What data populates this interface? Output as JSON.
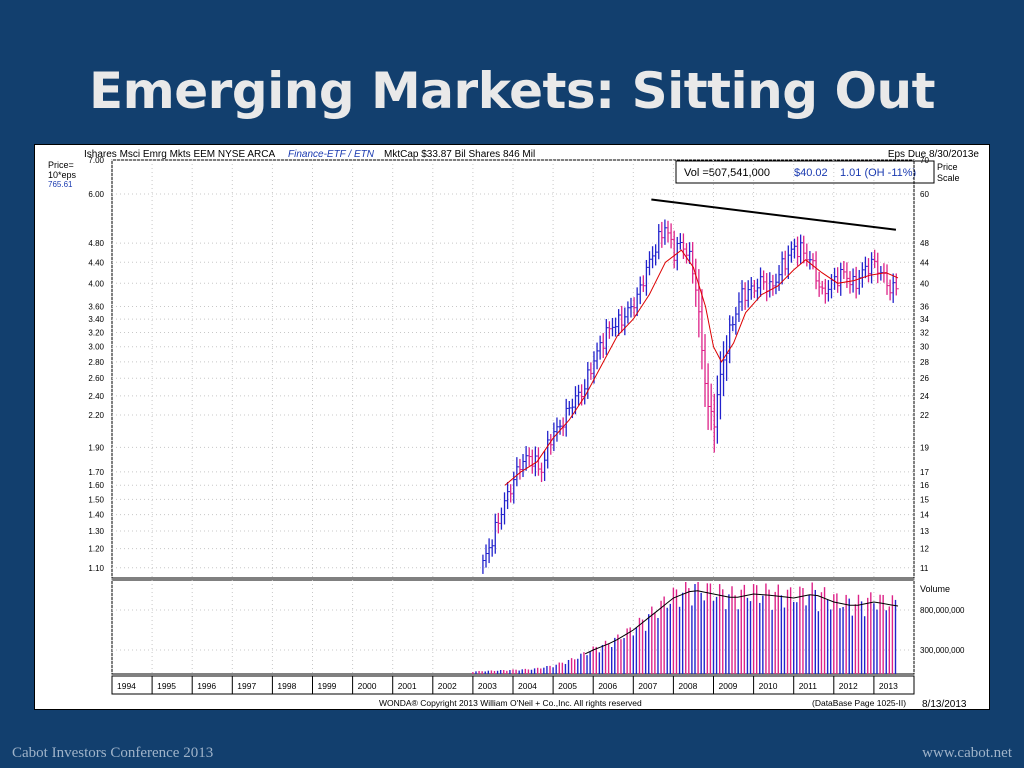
{
  "slide": {
    "title": "Emerging Markets: Sitting Out",
    "footer_left": "Cabot Investors Conference 2013",
    "footer_right": "www.cabot.net"
  },
  "header": {
    "left": "Ishares Msci Emrg Mkts  EEM  NYSE ARCA",
    "category": "Finance-ETF / ETN",
    "right": "MktCap $33.87 Bil   Shares 846 Mil",
    "eps_due": "Eps Due 8/30/2013e"
  },
  "price_box": {
    "vol": "Vol =507,541,000",
    "price": "$40.02",
    "change": "1.01 (OH -11%)"
  },
  "left_axis": {
    "label1": "Price=",
    "label2": "10*eps",
    "label3": "765.61"
  },
  "right_axis": {
    "label1": "Price",
    "label2": "Scale",
    "volume_label": "Volume"
  },
  "copyright": "WONDA® Copyright 2013 William O'Neil + Co.,Inc. All rights reserved",
  "database": "(DataBase Page 1025-II)",
  "date": "8/13/2013",
  "colors": {
    "up": "#2222cc",
    "down": "#dd2288",
    "ma": "#dd0000",
    "trend": "#000000"
  },
  "chart_data": {
    "type": "bar",
    "scale": "log",
    "ylim": [
      10.5,
      70
    ],
    "left_ticks": [
      {
        "v": 11,
        "label": "1.10"
      },
      {
        "v": 12,
        "label": "1.20"
      },
      {
        "v": 13,
        "label": "1.30"
      },
      {
        "v": 14,
        "label": "1.40"
      },
      {
        "v": 15,
        "label": "1.50"
      },
      {
        "v": 16,
        "label": "1.60"
      },
      {
        "v": 17,
        "label": "1.70"
      },
      {
        "v": 19,
        "label": "1.90"
      },
      {
        "v": 22,
        "label": "2.20"
      },
      {
        "v": 24,
        "label": "2.40"
      },
      {
        "v": 26,
        "label": "2.60"
      },
      {
        "v": 28,
        "label": "2.80"
      },
      {
        "v": 30,
        "label": "3.00"
      },
      {
        "v": 32,
        "label": "3.20"
      },
      {
        "v": 34,
        "label": "3.40"
      },
      {
        "v": 36,
        "label": "3.60"
      },
      {
        "v": 40,
        "label": "4.00"
      },
      {
        "v": 44,
        "label": "4.40"
      },
      {
        "v": 48,
        "label": "4.80"
      },
      {
        "v": 60,
        "label": "6.00"
      },
      {
        "v": 70,
        "label": "7.00"
      }
    ],
    "right_ticks": [
      {
        "v": 11,
        "label": "11"
      },
      {
        "v": 12,
        "label": "12"
      },
      {
        "v": 13,
        "label": "13"
      },
      {
        "v": 14,
        "label": "14"
      },
      {
        "v": 15,
        "label": "15"
      },
      {
        "v": 16,
        "label": "16"
      },
      {
        "v": 17,
        "label": "17"
      },
      {
        "v": 19,
        "label": "19"
      },
      {
        "v": 22,
        "label": "22"
      },
      {
        "v": 24,
        "label": "24"
      },
      {
        "v": 26,
        "label": "26"
      },
      {
        "v": 28,
        "label": "28"
      },
      {
        "v": 30,
        "label": "30"
      },
      {
        "v": 32,
        "label": "32"
      },
      {
        "v": 34,
        "label": "34"
      },
      {
        "v": 36,
        "label": "36"
      },
      {
        "v": 40,
        "label": "40"
      },
      {
        "v": 44,
        "label": "44"
      },
      {
        "v": 48,
        "label": "48"
      },
      {
        "v": 60,
        "label": "60"
      },
      {
        "v": 70,
        "label": "70"
      }
    ],
    "volume_ticks": [
      {
        "v": 800000000,
        "label": "800,000,000"
      },
      {
        "v": 300000000,
        "label": "300,000,000"
      }
    ],
    "years": [
      "1994",
      "1995",
      "1996",
      "1997",
      "1998",
      "1999",
      "2000",
      "2001",
      "2002",
      "2003",
      "2004",
      "2005",
      "2006",
      "2007",
      "2008",
      "2009",
      "2010",
      "2011",
      "2012",
      "2013"
    ],
    "year_start": 1994,
    "year_end": 2014,
    "price_series": {
      "name": "",
      "points": [
        [
          2003.25,
          11.2
        ],
        [
          2003.5,
          12.6
        ],
        [
          2003.75,
          14.5
        ],
        [
          2004.0,
          16.2
        ],
        [
          2004.2,
          17.8
        ],
        [
          2004.45,
          18.2
        ],
        [
          2004.7,
          17.0
        ],
        [
          2004.95,
          20.0
        ],
        [
          2005.2,
          21.0
        ],
        [
          2005.5,
          23.5
        ],
        [
          2005.75,
          24.5
        ],
        [
          2006.0,
          28.0
        ],
        [
          2006.25,
          31.0
        ],
        [
          2006.45,
          33.0
        ],
        [
          2006.65,
          33.5
        ],
        [
          2006.85,
          35.0
        ],
        [
          2007.1,
          37.5
        ],
        [
          2007.35,
          43.0
        ],
        [
          2007.55,
          47.0
        ],
        [
          2007.8,
          52.0
        ],
        [
          2008.0,
          46.0
        ],
        [
          2008.2,
          48.0
        ],
        [
          2008.4,
          45.0
        ],
        [
          2008.55,
          40.0
        ],
        [
          2008.7,
          30.0
        ],
        [
          2008.85,
          23.0
        ],
        [
          2009.0,
          21.0
        ],
        [
          2009.2,
          27.0
        ],
        [
          2009.45,
          33.0
        ],
        [
          2009.7,
          38.0
        ],
        [
          2010.0,
          39.0
        ],
        [
          2010.2,
          40.5
        ],
        [
          2010.45,
          39.0
        ],
        [
          2010.7,
          43.0
        ],
        [
          2011.0,
          47.0
        ],
        [
          2011.2,
          46.5
        ],
        [
          2011.45,
          44.0
        ],
        [
          2011.7,
          38.0
        ],
        [
          2012.0,
          40.5
        ],
        [
          2012.25,
          42.0
        ],
        [
          2012.5,
          39.5
        ],
        [
          2012.75,
          42.5
        ],
        [
          2013.0,
          44.0
        ],
        [
          2013.25,
          41.0
        ],
        [
          2013.45,
          38.5
        ],
        [
          2013.6,
          40.0
        ]
      ]
    },
    "moving_average": {
      "name": "",
      "points": [
        [
          2003.8,
          16.0
        ],
        [
          2004.2,
          17.0
        ],
        [
          2004.6,
          17.8
        ],
        [
          2005.0,
          19.8
        ],
        [
          2005.4,
          21.5
        ],
        [
          2005.8,
          24.0
        ],
        [
          2006.2,
          27.5
        ],
        [
          2006.6,
          31.5
        ],
        [
          2007.0,
          34.0
        ],
        [
          2007.4,
          38.0
        ],
        [
          2007.8,
          44.0
        ],
        [
          2008.2,
          46.5
        ],
        [
          2008.5,
          43.0
        ],
        [
          2008.8,
          36.0
        ],
        [
          2009.0,
          30.0
        ],
        [
          2009.2,
          28.0
        ],
        [
          2009.5,
          30.5
        ],
        [
          2009.8,
          35.0
        ],
        [
          2010.2,
          38.0
        ],
        [
          2010.6,
          39.5
        ],
        [
          2011.0,
          42.5
        ],
        [
          2011.3,
          44.5
        ],
        [
          2011.7,
          42.0
        ],
        [
          2012.1,
          40.0
        ],
        [
          2012.5,
          40.5
        ],
        [
          2012.9,
          41.5
        ],
        [
          2013.3,
          42.0
        ],
        [
          2013.6,
          41.0
        ]
      ]
    },
    "trendline": {
      "from": [
        2007.45,
        58.5
      ],
      "to": [
        2013.55,
        51.0
      ]
    },
    "volume_series": {
      "name": "",
      "points": [
        [
          2003.0,
          30000000
        ],
        [
          2003.5,
          40000000
        ],
        [
          2004.0,
          50000000
        ],
        [
          2004.5,
          60000000
        ],
        [
          2005.0,
          100000000
        ],
        [
          2005.5,
          180000000
        ],
        [
          2006.0,
          300000000
        ],
        [
          2006.5,
          400000000
        ],
        [
          2007.0,
          550000000
        ],
        [
          2007.5,
          750000000
        ],
        [
          2008.0,
          950000000
        ],
        [
          2008.5,
          1050000000
        ],
        [
          2009.0,
          1000000000
        ],
        [
          2009.5,
          950000000
        ],
        [
          2010.0,
          1000000000
        ],
        [
          2010.5,
          980000000
        ],
        [
          2011.0,
          950000000
        ],
        [
          2011.5,
          1000000000
        ],
        [
          2012.0,
          900000000
        ],
        [
          2012.5,
          850000000
        ],
        [
          2013.0,
          900000000
        ],
        [
          2013.6,
          850000000
        ]
      ]
    }
  }
}
